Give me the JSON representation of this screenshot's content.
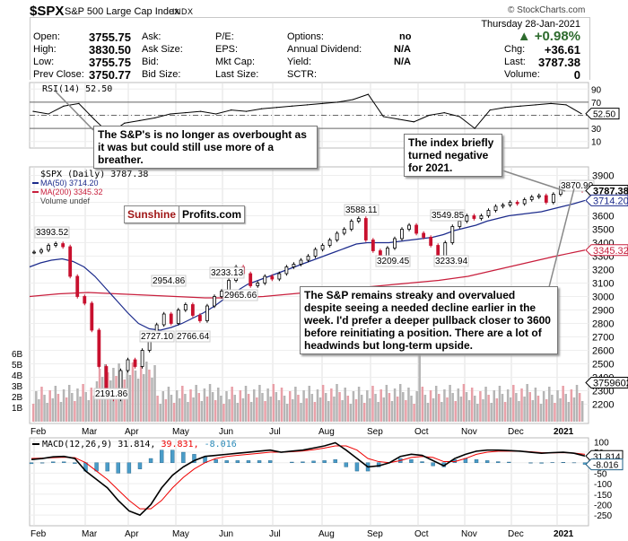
{
  "header": {
    "symbol": "$SPX",
    "name": "S&P 500 Large Cap Index",
    "exchange": "INDX",
    "copyright": "© StockCharts.com"
  },
  "quote": {
    "col1": [
      {
        "label": "Open:",
        "value": "3755.75"
      },
      {
        "label": "High:",
        "value": "3830.50"
      },
      {
        "label": "Low:",
        "value": "3755.75"
      },
      {
        "label": "Prev Close:",
        "value": "3750.77"
      }
    ],
    "col2": [
      "Ask:",
      "Ask Size:",
      "Bid:",
      "Bid Size:"
    ],
    "col3": [
      "P/E:",
      "EPS:",
      "Mkt Cap:",
      "Last Size:"
    ],
    "col4": [
      {
        "label": "Options:",
        "value": "no"
      },
      {
        "label": "Annual Dividend:",
        "value": "N/A"
      },
      {
        "label": "Yield:",
        "value": "N/A"
      },
      {
        "label": "SCTR:",
        "value": ""
      }
    ],
    "date": "Thursday  28-Jan-2021",
    "change_pct": "▲ +0.98%",
    "chg_label": "Chg:",
    "chg_value": "+36.61",
    "last_label": "Last:",
    "last_value": "3787.38",
    "volume_label": "Volume:",
    "volume_value": "0",
    "up_color": "#2e6b2e"
  },
  "logo": {
    "part1": "Sunshine",
    "part2": "Profits.com"
  },
  "callouts": {
    "rsi": "The S&P's is no longer as overbought as it was but could still use more of a breather.",
    "negative": "The index briefly turned negative for 2021.",
    "main": "The S&P remains streaky and overvalued despite seeing a needed decline earlier in the week. I'd prefer a deeper pullback closer to 3600 before reinitiating a position. There are a lot of headwinds but long-term upside."
  },
  "chart_data": [
    {
      "type": "line",
      "title": "RSI(14) 52.50",
      "legend": "RSI(14) 52.50",
      "ylim": [
        0,
        100
      ],
      "yticks": [
        10,
        30,
        50,
        70,
        90
      ],
      "reference_lines": [
        30,
        50,
        70
      ],
      "last_value_label": "52.50",
      "x": [
        "Feb",
        "Feb",
        "Feb",
        "Mar",
        "Mar",
        "Mar",
        "Mar",
        "Apr",
        "Apr",
        "Apr",
        "May",
        "May",
        "May",
        "Jun",
        "Jun",
        "Jun",
        "Jul",
        "Jul",
        "Jul",
        "Aug",
        "Aug",
        "Aug",
        "Sep",
        "Sep",
        "Sep",
        "Oct",
        "Oct",
        "Oct",
        "Nov",
        "Nov",
        "Nov",
        "Dec",
        "Dec",
        "Dec",
        "Jan",
        "Jan",
        "Jan"
      ],
      "values": [
        56,
        52,
        64,
        68,
        44,
        22,
        38,
        42,
        46,
        52,
        54,
        56,
        52,
        58,
        56,
        60,
        62,
        64,
        66,
        68,
        70,
        74,
        82,
        48,
        44,
        40,
        50,
        54,
        48,
        30,
        58,
        62,
        64,
        66,
        68,
        66,
        52.5
      ]
    },
    {
      "type": "candlestick",
      "title": "$SPX (Daily) 3787.38",
      "legend": [
        "$SPX (Daily) 3787.38",
        "MA(50) 3714.20",
        "MA(200) 3345.32",
        "Volume undef"
      ],
      "ylim": [
        2150,
        3950
      ],
      "yticks": [
        2200,
        2300,
        2400,
        2500,
        2600,
        2700,
        2800,
        2900,
        3000,
        3100,
        3200,
        3300,
        3400,
        3500,
        3600,
        3700,
        3800,
        3900
      ],
      "xticks": [
        "Feb",
        "Mar",
        "Apr",
        "May",
        "Jun",
        "Jul",
        "Aug",
        "Sep",
        "Oct",
        "Nov",
        "Dec",
        "2021"
      ],
      "annotations": [
        {
          "label": "3393.52",
          "x": "Feb-19",
          "y": 3393.52
        },
        {
          "label": "2191.86",
          "x": "Mar-23",
          "y": 2191.86
        },
        {
          "label": "2727.10",
          "x": "Apr-01",
          "y": 2727.1
        },
        {
          "label": "2954.86",
          "x": "Apr-29",
          "y": 2954.86
        },
        {
          "label": "2766.64",
          "x": "May-14",
          "y": 2766.64
        },
        {
          "label": "3233.13",
          "x": "Jun-08",
          "y": 3233.13
        },
        {
          "label": "2965.66",
          "x": "Jun-15",
          "y": 2965.66
        },
        {
          "label": "3588.11",
          "x": "Sep-02",
          "y": 3588.11
        },
        {
          "label": "3209.45",
          "x": "Sep-24",
          "y": 3209.45
        },
        {
          "label": "3549.85",
          "x": "Oct-12",
          "y": 3549.85
        },
        {
          "label": "3233.94",
          "x": "Oct-30",
          "y": 3233.94
        },
        {
          "label": "3870.90",
          "x": "Jan-25",
          "y": 3870.9
        }
      ],
      "last_labels": {
        "close": "3787.38",
        "ma50": "3714.20",
        "ma200": "3345.32",
        "volume": "3759602"
      },
      "close": [
        3330,
        3345,
        3380,
        3393,
        3370,
        3150,
        3000,
        2950,
        2750,
        2480,
        2300,
        2237,
        2450,
        2530,
        2480,
        2600,
        2720,
        2790,
        2870,
        2800,
        2900,
        2940,
        2860,
        2820,
        2930,
        3000,
        3040,
        3120,
        3220,
        3170,
        3080,
        3100,
        3150,
        3130,
        3170,
        3220,
        3240,
        3270,
        3300,
        3350,
        3380,
        3420,
        3470,
        3500,
        3560,
        3580,
        3420,
        3340,
        3300,
        3360,
        3430,
        3500,
        3530,
        3470,
        3440,
        3380,
        3300,
        3400,
        3520,
        3560,
        3600,
        3580,
        3600,
        3640,
        3670,
        3680,
        3700,
        3690,
        3720,
        3740,
        3750,
        3700,
        3760,
        3820,
        3850,
        3852,
        3787
      ],
      "ma50": [
        3220,
        3250,
        3270,
        3280,
        3260,
        3220,
        3150,
        3060,
        2970,
        2880,
        2800,
        2760,
        2750,
        2770,
        2800,
        2840,
        2880,
        2930,
        2990,
        3040,
        3090,
        3120,
        3150,
        3180,
        3210,
        3240,
        3270,
        3300,
        3330,
        3360,
        3390,
        3400,
        3400,
        3400,
        3410,
        3420,
        3430,
        3440,
        3460,
        3490,
        3510,
        3530,
        3560,
        3580,
        3600,
        3610,
        3620,
        3630,
        3650,
        3670,
        3690,
        3714
      ],
      "ma200": [
        3000,
        3020,
        3030,
        3020,
        3010,
        3000,
        2990,
        2990,
        3000,
        3020,
        3040,
        3060,
        3080,
        3100,
        3120,
        3150,
        3200,
        3250,
        3300,
        3345
      ],
      "volume_axis": {
        "yticks": [
          "1B",
          "2B",
          "3B",
          "4B",
          "5B",
          "6B"
        ],
        "bar_colors": {
          "up": "#b5b5b5",
          "down": "#e8a0a8"
        }
      }
    },
    {
      "type": "line",
      "title": "MACD(12,26,9) 31.814, 39.831, -8.016",
      "legend": {
        "macd": "31.814",
        "signal": "39.831",
        "hist": "-8.016",
        "label": "MACD(12,26,9)"
      },
      "ylim": [
        -275,
        110
      ],
      "yticks": [
        100,
        50,
        0,
        -50,
        -100,
        -150,
        -200,
        -250
      ],
      "last_labels": {
        "macd": "31.814",
        "hist": "-8.016"
      },
      "macd": [
        15,
        20,
        28,
        30,
        20,
        -40,
        -80,
        -120,
        -180,
        -230,
        -250,
        -200,
        -120,
        -60,
        -20,
        10,
        30,
        35,
        40,
        45,
        50,
        55,
        60,
        50,
        55,
        60,
        70,
        80,
        95,
        60,
        20,
        -20,
        -15,
        0,
        30,
        40,
        35,
        10,
        -15,
        20,
        40,
        55,
        60,
        60,
        58,
        55,
        50,
        45,
        48,
        50,
        45,
        31.8
      ],
      "signal": [
        20,
        22,
        24,
        26,
        24,
        0,
        -40,
        -80,
        -130,
        -180,
        -220,
        -220,
        -180,
        -120,
        -70,
        -30,
        0,
        20,
        30,
        35,
        40,
        45,
        50,
        50,
        52,
        56,
        62,
        70,
        80,
        80,
        60,
        20,
        5,
        0,
        10,
        25,
        30,
        25,
        5,
        5,
        20,
        40,
        50,
        55,
        55,
        55,
        52,
        48,
        47,
        48,
        46,
        39.8
      ]
    }
  ]
}
